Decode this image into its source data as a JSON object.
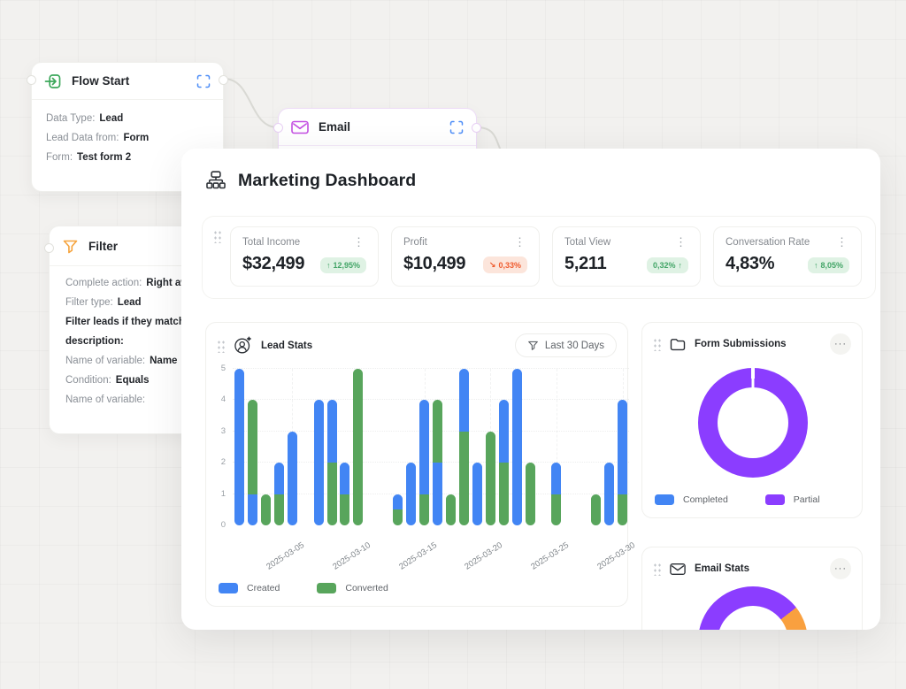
{
  "flow": {
    "flow_start": {
      "title": "Flow Start",
      "fields": [
        {
          "label": "Data Type:",
          "value": "Lead",
          "bold": false
        },
        {
          "label": "Lead Data from:",
          "value": "Form",
          "bold": false
        },
        {
          "label": "Form:",
          "value": "Test form 2",
          "bold": false
        }
      ]
    },
    "email": {
      "title": "Email"
    },
    "filter": {
      "title": "Filter",
      "fields": [
        {
          "label": "Complete action:",
          "value": "Right away",
          "bold": false
        },
        {
          "label": "Filter type:",
          "value": "Lead",
          "bold": false
        },
        {
          "label": "Filter leads if they match the",
          "value": "",
          "bold": true
        },
        {
          "label": "description:",
          "value": "",
          "bold": true
        },
        {
          "label": "Name of variable:",
          "value": "Name",
          "bold": false
        },
        {
          "label": "Condition:",
          "value": "Equals",
          "bold": false
        },
        {
          "label": "Name of variable:",
          "value": "",
          "bold": false
        }
      ]
    }
  },
  "dashboard": {
    "title": "Marketing Dashboard",
    "stats": [
      {
        "label": "Total Income",
        "value": "$32,499",
        "badge_prefix": "↑",
        "badge_text": "12,95%",
        "badge_suffix": "",
        "trend": "up"
      },
      {
        "label": "Profit",
        "value": "$10,499",
        "badge_prefix": "↘",
        "badge_text": "0,33%",
        "badge_suffix": "",
        "trend": "down"
      },
      {
        "label": "Total View",
        "value": "5,211",
        "badge_prefix": "",
        "badge_text": "0,32%",
        "badge_suffix": "↑",
        "trend": "up"
      },
      {
        "label": "Conversation Rate",
        "value": "4,83%",
        "badge_prefix": "↑",
        "badge_text": "8,05%",
        "badge_suffix": "",
        "trend": "up"
      }
    ],
    "lead_stats": {
      "title": "Lead Stats",
      "filter_label": "Last 30 Days"
    },
    "form_submissions": {
      "title": "Form Submissions",
      "menu": "···"
    },
    "email_stats": {
      "title": "Email Stats",
      "menu": "···"
    }
  },
  "chart_data": [
    {
      "id": "lead_stats",
      "type": "bar",
      "title": "Lead Stats",
      "ylim": [
        0,
        5
      ],
      "yticks": [
        0,
        1,
        2,
        3,
        4,
        5
      ],
      "x_days": 30,
      "x_tick_labels": [
        "2025-03-05",
        "2025-03-10",
        "2025-03-15",
        "2025-03-20",
        "2025-03-25",
        "2025-03-30"
      ],
      "x_tick_days": [
        4,
        9,
        14,
        19,
        24,
        29
      ],
      "grid": true,
      "legend_position": "bottom-left",
      "legend": [
        {
          "name": "Created",
          "color": "#4285F4"
        },
        {
          "name": "Converted",
          "color": "#58A55C"
        }
      ],
      "colors": {
        "b": "#4285F4",
        "g": "#58A55C"
      },
      "bars": [
        {
          "day": 0,
          "segments": [
            [
              "b",
              0,
              5
            ]
          ]
        },
        {
          "day": 1,
          "segments": [
            [
              "b",
              0,
              1
            ],
            [
              "g",
              1,
              4
            ]
          ]
        },
        {
          "day": 2,
          "segments": [
            [
              "g",
              0,
              1
            ]
          ]
        },
        {
          "day": 3,
          "segments": [
            [
              "g",
              0,
              1
            ],
            [
              "b",
              1,
              2
            ]
          ]
        },
        {
          "day": 4,
          "segments": [
            [
              "b",
              0,
              3
            ]
          ]
        },
        {
          "day": 6,
          "segments": [
            [
              "b",
              0,
              4
            ]
          ]
        },
        {
          "day": 7,
          "segments": [
            [
              "g",
              0,
              2
            ],
            [
              "b",
              2,
              4
            ]
          ]
        },
        {
          "day": 8,
          "segments": [
            [
              "g",
              0,
              1
            ],
            [
              "b",
              1,
              2
            ]
          ]
        },
        {
          "day": 9,
          "segments": [
            [
              "g",
              0,
              5
            ]
          ]
        },
        {
          "day": 12,
          "segments": [
            [
              "g",
              0,
              0.5
            ],
            [
              "b",
              0.5,
              1
            ]
          ]
        },
        {
          "day": 13,
          "segments": [
            [
              "b",
              0,
              2
            ]
          ]
        },
        {
          "day": 14,
          "segments": [
            [
              "g",
              0,
              1
            ],
            [
              "b",
              1,
              4
            ]
          ]
        },
        {
          "day": 15,
          "segments": [
            [
              "b",
              0,
              2
            ],
            [
              "g",
              2,
              4
            ]
          ]
        },
        {
          "day": 16,
          "segments": [
            [
              "g",
              0,
              1
            ]
          ]
        },
        {
          "day": 17,
          "segments": [
            [
              "g",
              0,
              3
            ],
            [
              "b",
              3,
              5
            ]
          ]
        },
        {
          "day": 18,
          "segments": [
            [
              "b",
              0,
              2
            ]
          ]
        },
        {
          "day": 19,
          "segments": [
            [
              "g",
              0,
              3
            ]
          ]
        },
        {
          "day": 20,
          "segments": [
            [
              "g",
              0,
              2
            ],
            [
              "b",
              2,
              4
            ]
          ]
        },
        {
          "day": 21,
          "segments": [
            [
              "b",
              0,
              5
            ]
          ]
        },
        {
          "day": 22,
          "segments": [
            [
              "g",
              0,
              2
            ]
          ]
        },
        {
          "day": 24,
          "segments": [
            [
              "g",
              0,
              1
            ],
            [
              "b",
              1,
              2
            ]
          ]
        },
        {
          "day": 27,
          "segments": [
            [
              "g",
              0,
              1
            ]
          ]
        },
        {
          "day": 28,
          "segments": [
            [
              "b",
              0,
              2
            ]
          ]
        },
        {
          "day": 29,
          "segments": [
            [
              "g",
              0,
              1
            ],
            [
              "b",
              1,
              4
            ]
          ]
        }
      ]
    },
    {
      "id": "form_submissions",
      "type": "donut",
      "title": "Form Submissions",
      "values": [
        {
          "name": "Completed",
          "pct": 1,
          "color": "#4285F4"
        },
        {
          "name": "Partial",
          "pct": 99,
          "color": "#8B3DFF"
        }
      ],
      "segments": [
        {
          "color": "#FFFFFF",
          "deg": [
            0,
            2
          ]
        },
        {
          "color": "#8B3DFF",
          "deg": [
            2,
            358
          ]
        },
        {
          "color": "#FFFFFF",
          "deg": [
            358,
            360
          ]
        }
      ],
      "legend": [
        {
          "name": "Completed",
          "color": "#4285F4"
        },
        {
          "name": "Partial",
          "color": "#8B3DFF"
        }
      ]
    },
    {
      "id": "email_stats",
      "type": "donut",
      "title": "Email Stats",
      "segments": [
        {
          "color": "#8B3DFF",
          "deg": [
            0,
            52
          ]
        },
        {
          "color": "#F9A03F",
          "deg": [
            52,
            96
          ]
        },
        {
          "color": "#FFFFFF",
          "deg": [
            96,
            270
          ]
        },
        {
          "color": "#8B3DFF",
          "deg": [
            270,
            360
          ]
        }
      ]
    }
  ]
}
